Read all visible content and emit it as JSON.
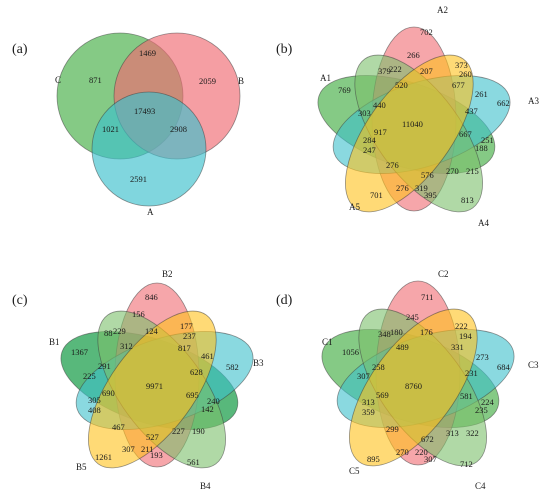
{
  "panels": [
    {
      "id": "a",
      "label": "(a)",
      "type": "venn3",
      "sets": [
        {
          "name": "C",
          "color": "#5cb85c"
        },
        {
          "name": "B",
          "color": "#f06a72"
        },
        {
          "name": "A",
          "color": "#3cc0cc"
        }
      ],
      "counts": {
        "only_C": "871",
        "only_B": "2059",
        "only_A": "2591",
        "C_B": "1469",
        "C_A": "1021",
        "B_A": "2908",
        "all": "17493"
      }
    },
    {
      "id": "b",
      "label": "(b)",
      "type": "venn5",
      "sets": [
        {
          "name": "A1",
          "color": "#5cb85c"
        },
        {
          "name": "A2",
          "color": "#f06a72"
        },
        {
          "name": "A3",
          "color": "#3cc0cc"
        },
        {
          "name": "A4",
          "color": "#7cbf6a"
        },
        {
          "name": "A5",
          "color": "#ffc21a"
        }
      ],
      "counts": {
        "only_1": "769",
        "only_2": "702",
        "only_3": "662",
        "only_4": "813",
        "only_5": "701",
        "c_266": "266",
        "c_373": "373",
        "c_379": "379",
        "c_222": "222",
        "c_207": "207",
        "c_260": "260",
        "c_520": "520",
        "c_677": "677",
        "c_261": "261",
        "c_440": "440",
        "c_303": "303",
        "c_437": "437",
        "c_917": "917",
        "c_667": "667",
        "c_284": "284",
        "c_247": "247",
        "c_251": "251",
        "c_188": "188",
        "c_276a": "276",
        "c_576": "576",
        "c_270": "270",
        "c_215": "215",
        "c_276b": "276",
        "c_319": "319",
        "c_395": "395",
        "center": "11040"
      }
    },
    {
      "id": "c",
      "label": "(c)",
      "type": "venn5",
      "sets": [
        {
          "name": "B1",
          "color": "#2ea65a"
        },
        {
          "name": "B2",
          "color": "#f06a72"
        },
        {
          "name": "B3",
          "color": "#3cc0cc"
        },
        {
          "name": "B4",
          "color": "#7cbf6a"
        },
        {
          "name": "B5",
          "color": "#ffc21a"
        }
      ],
      "counts": {
        "only_1": "1367",
        "only_2": "846",
        "only_3": "582",
        "only_4": "561",
        "only_5": "1261",
        "c_156": "156",
        "c_177": "177",
        "c_88": "88",
        "c_229": "229",
        "c_124": "124",
        "c_237": "237",
        "c_312": "312",
        "c_817": "817",
        "c_461": "461",
        "c_291": "291",
        "c_225": "225",
        "c_628": "628",
        "c_690": "690",
        "c_695": "695",
        "c_305": "305",
        "c_408": "408",
        "c_240": "240",
        "c_142": "142",
        "c_467": "467",
        "c_527": "527",
        "c_227": "227",
        "c_190": "190",
        "c_307": "307",
        "c_211": "211",
        "c_193": "193",
        "center": "9971"
      }
    },
    {
      "id": "d",
      "label": "(d)",
      "type": "venn5",
      "sets": [
        {
          "name": "C1",
          "color": "#5cb85c"
        },
        {
          "name": "C2",
          "color": "#f06a72"
        },
        {
          "name": "C3",
          "color": "#3cc0cc"
        },
        {
          "name": "C4",
          "color": "#7cbf6a"
        },
        {
          "name": "C5",
          "color": "#ffc21a"
        }
      ],
      "counts": {
        "only_1": "1056",
        "only_2": "711",
        "only_3": "684",
        "only_4": "712",
        "only_5": "895",
        "c_245": "245",
        "c_222": "222",
        "c_348": "348",
        "c_180": "180",
        "c_176": "176",
        "c_194": "194",
        "c_489": "489",
        "c_331": "331",
        "c_273": "273",
        "c_258": "258",
        "c_307a": "307",
        "c_231": "231",
        "c_569": "569",
        "c_581": "581",
        "c_313a": "313",
        "c_359": "359",
        "c_224": "224",
        "c_235": "235",
        "c_299": "299",
        "c_672": "672",
        "c_313b": "313",
        "c_322": "322",
        "c_270": "270",
        "c_220": "220",
        "c_307b": "307",
        "center": "8760"
      }
    }
  ]
}
